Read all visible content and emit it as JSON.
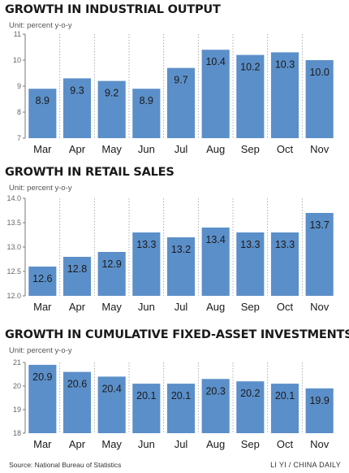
{
  "chart_data": [
    {
      "type": "bar",
      "title": "GROWTH IN INDUSTRIAL OUTPUT",
      "unit": "Unit: percent y-o-y",
      "categories": [
        "Mar",
        "Apr",
        "May",
        "Jun",
        "Jul",
        "Aug",
        "Sep",
        "Oct",
        "Nov"
      ],
      "values": [
        8.9,
        9.3,
        9.2,
        8.9,
        9.7,
        10.4,
        10.2,
        10.3,
        10.0
      ],
      "value_labels": [
        "8.9",
        "9.3",
        "9.2",
        "8.9",
        "9.7",
        "10.4",
        "10.2",
        "10.3",
        "10.0"
      ],
      "ylim": [
        7,
        11
      ],
      "yticks": [
        "7",
        "8",
        "9",
        "10",
        "11"
      ],
      "grid": "vertical dashed separators",
      "bar_color": "#5b8fc9"
    },
    {
      "type": "bar",
      "title": "GROWTH IN RETAIL SALES",
      "unit": "Unit: percent y-o-y",
      "categories": [
        "Mar",
        "Apr",
        "May",
        "Jun",
        "Jul",
        "Aug",
        "Sep",
        "Oct",
        "Nov"
      ],
      "values": [
        12.6,
        12.8,
        12.9,
        13.3,
        13.2,
        13.4,
        13.3,
        13.3,
        13.7
      ],
      "value_labels": [
        "12.6",
        "12.8",
        "12.9",
        "13.3",
        "13.2",
        "13.4",
        "13.3",
        "13.3",
        "13.7"
      ],
      "ylim": [
        12.0,
        14.0
      ],
      "yticks": [
        "12.0",
        "12.5",
        "13.0",
        "13.5",
        "14.0"
      ],
      "grid": "vertical dashed separators",
      "bar_color": "#5b8fc9"
    },
    {
      "type": "bar",
      "title": "GROWTH IN CUMULATIVE FIXED-ASSET INVESTMENTS",
      "unit": "Unit: percent y-o-y",
      "categories": [
        "Mar",
        "Apr",
        "May",
        "Jun",
        "Jul",
        "Aug",
        "Sep",
        "Oct",
        "Nov"
      ],
      "values": [
        20.9,
        20.6,
        20.4,
        20.1,
        20.1,
        20.3,
        20.2,
        20.1,
        19.9
      ],
      "value_labels": [
        "20.9",
        "20.6",
        "20.4",
        "20.1",
        "20.1",
        "20.3",
        "20.2",
        "20.1",
        "19.9"
      ],
      "ylim": [
        18,
        21
      ],
      "yticks": [
        "18",
        "19",
        "20",
        "21"
      ],
      "grid": "vertical dashed separators",
      "bar_color": "#5b8fc9"
    }
  ],
  "footer": {
    "source": "Source: National Bureau of Statistics",
    "credit": "LI YI / CHINA DAILY"
  }
}
